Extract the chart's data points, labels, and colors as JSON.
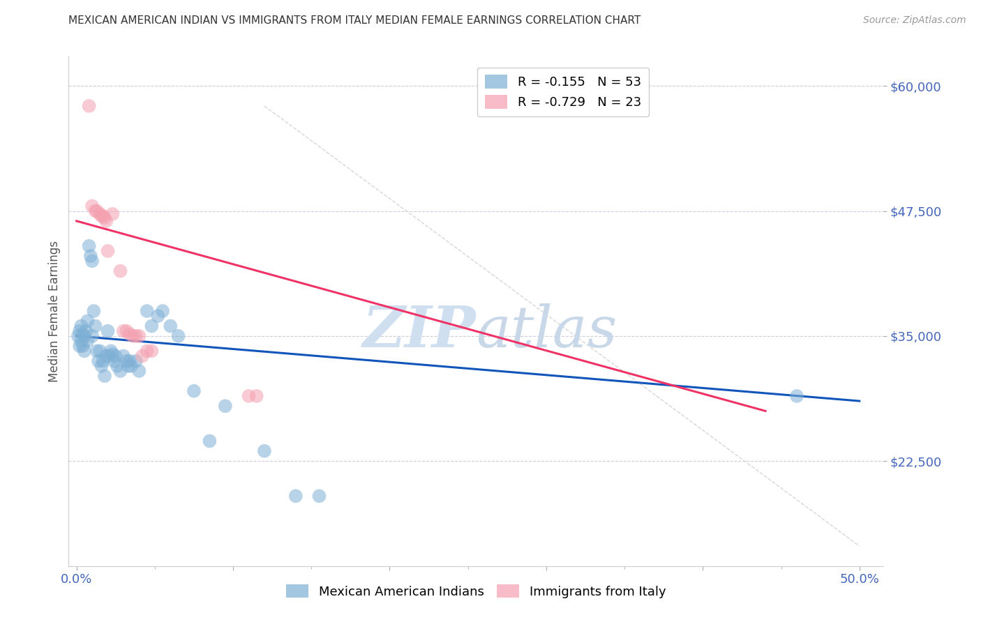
{
  "title": "MEXICAN AMERICAN INDIAN VS IMMIGRANTS FROM ITALY MEDIAN FEMALE EARNINGS CORRELATION CHART",
  "source": "Source: ZipAtlas.com",
  "ylabel": "Median Female Earnings",
  "ymin": 12000,
  "ymax": 63000,
  "xmin": -0.005,
  "xmax": 0.515,
  "blue_color": "#7EB0D5",
  "pink_color": "#F4A0B0",
  "blue_line_color": "#1155BB",
  "pink_line_color": "#EE3366",
  "grid_color": "#CCCCDD",
  "title_color": "#333333",
  "source_color": "#999999",
  "ytick_color": "#4466BB",
  "watermark_color": "#D0DFF0",
  "blue_dots": [
    [
      0.001,
      35000
    ],
    [
      0.002,
      34000
    ],
    [
      0.002,
      35500
    ],
    [
      0.003,
      34500
    ],
    [
      0.003,
      36000
    ],
    [
      0.004,
      35200
    ],
    [
      0.004,
      34000
    ],
    [
      0.005,
      35000
    ],
    [
      0.005,
      33500
    ],
    [
      0.006,
      35500
    ],
    [
      0.007,
      34500
    ],
    [
      0.007,
      36500
    ],
    [
      0.008,
      44000
    ],
    [
      0.009,
      43000
    ],
    [
      0.01,
      42500
    ],
    [
      0.01,
      35000
    ],
    [
      0.011,
      37500
    ],
    [
      0.012,
      36000
    ],
    [
      0.013,
      33500
    ],
    [
      0.014,
      32500
    ],
    [
      0.015,
      33500
    ],
    [
      0.016,
      32000
    ],
    [
      0.017,
      32500
    ],
    [
      0.018,
      31000
    ],
    [
      0.019,
      33000
    ],
    [
      0.02,
      35500
    ],
    [
      0.021,
      33000
    ],
    [
      0.022,
      33500
    ],
    [
      0.023,
      33200
    ],
    [
      0.024,
      32500
    ],
    [
      0.025,
      33000
    ],
    [
      0.026,
      32000
    ],
    [
      0.028,
      31500
    ],
    [
      0.03,
      33000
    ],
    [
      0.032,
      32500
    ],
    [
      0.033,
      32000
    ],
    [
      0.034,
      32500
    ],
    [
      0.035,
      32000
    ],
    [
      0.038,
      32500
    ],
    [
      0.04,
      31500
    ],
    [
      0.045,
      37500
    ],
    [
      0.048,
      36000
    ],
    [
      0.052,
      37000
    ],
    [
      0.055,
      37500
    ],
    [
      0.06,
      36000
    ],
    [
      0.065,
      35000
    ],
    [
      0.075,
      29500
    ],
    [
      0.085,
      24500
    ],
    [
      0.095,
      28000
    ],
    [
      0.12,
      23500
    ],
    [
      0.14,
      19000
    ],
    [
      0.155,
      19000
    ],
    [
      0.46,
      29000
    ]
  ],
  "pink_dots": [
    [
      0.008,
      58000
    ],
    [
      0.01,
      48000
    ],
    [
      0.012,
      47500
    ],
    [
      0.013,
      47500
    ],
    [
      0.015,
      47200
    ],
    [
      0.016,
      47000
    ],
    [
      0.017,
      47000
    ],
    [
      0.018,
      46800
    ],
    [
      0.019,
      46500
    ],
    [
      0.02,
      43500
    ],
    [
      0.023,
      47200
    ],
    [
      0.028,
      41500
    ],
    [
      0.03,
      35500
    ],
    [
      0.032,
      35500
    ],
    [
      0.034,
      35200
    ],
    [
      0.036,
      35000
    ],
    [
      0.038,
      35000
    ],
    [
      0.04,
      35000
    ],
    [
      0.042,
      33000
    ],
    [
      0.045,
      33500
    ],
    [
      0.048,
      33500
    ],
    [
      0.11,
      29000
    ],
    [
      0.115,
      29000
    ]
  ],
  "blue_line_x": [
    0.0,
    0.5
  ],
  "blue_line_y": [
    35000,
    28500
  ],
  "pink_line_x": [
    0.0,
    0.44
  ],
  "pink_line_y": [
    46500,
    27500
  ],
  "diag_line_x": [
    0.12,
    0.5
  ],
  "diag_line_y": [
    58000,
    14000
  ]
}
